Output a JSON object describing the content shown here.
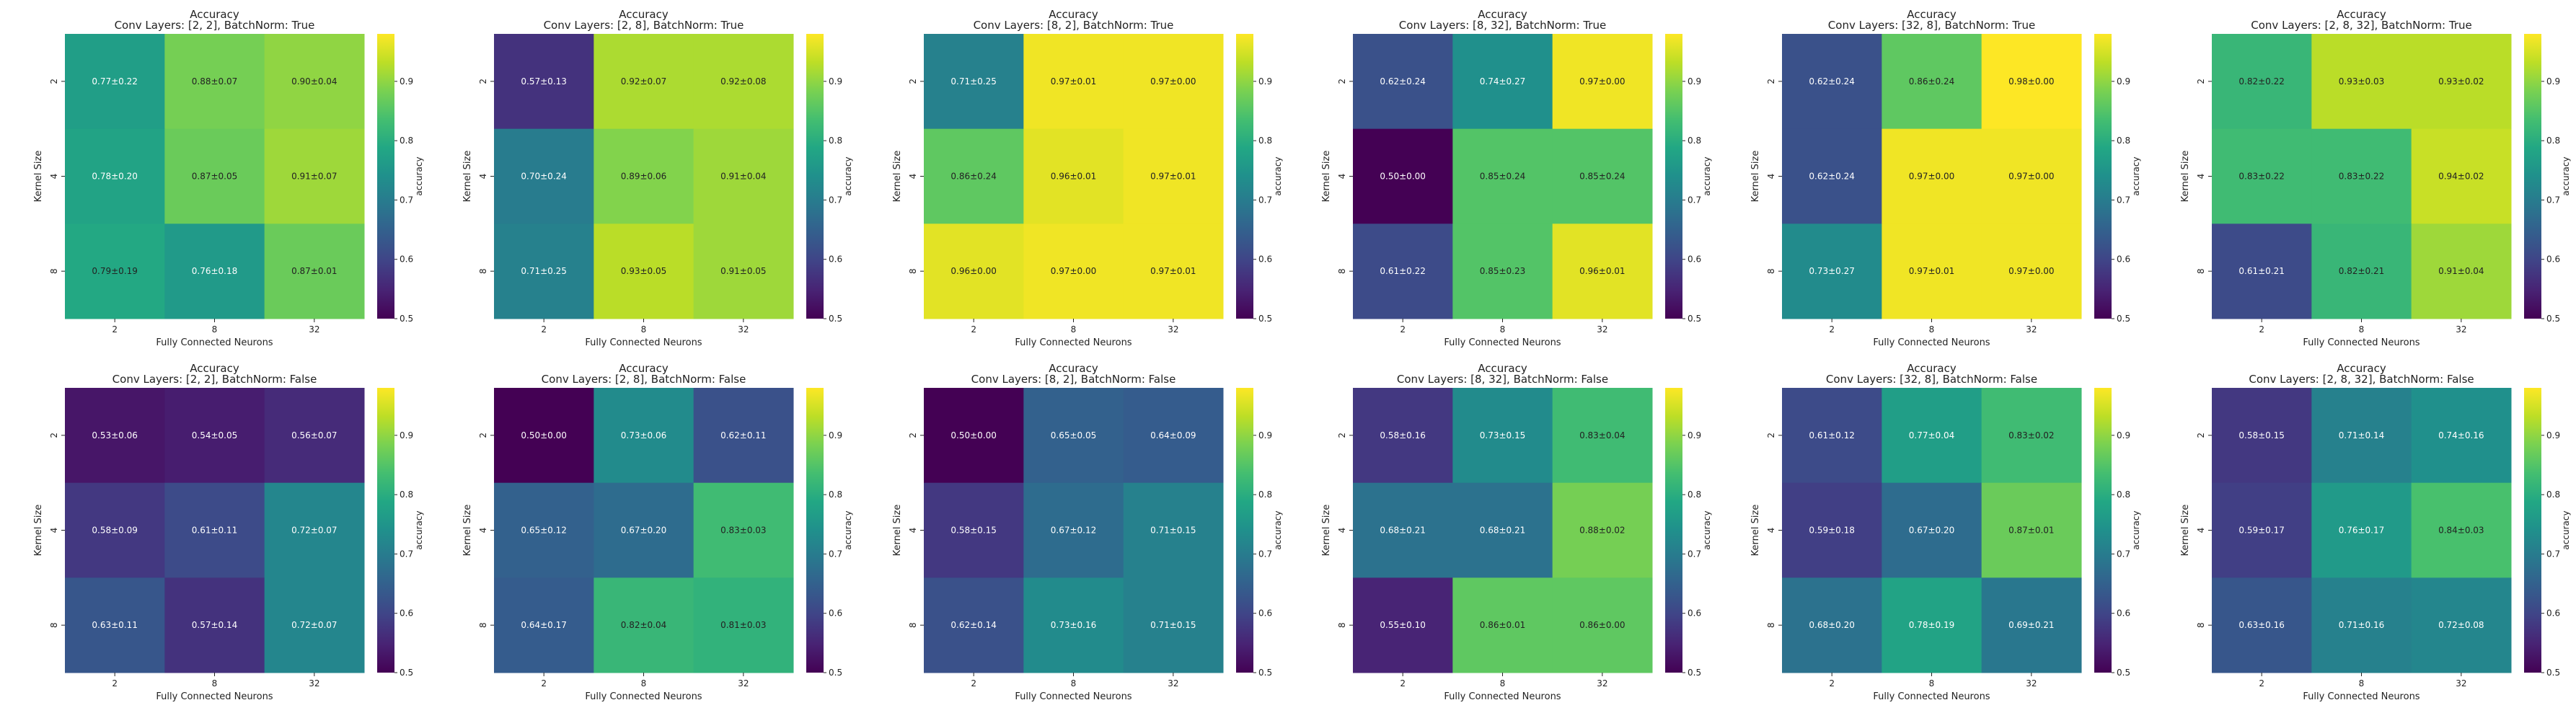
{
  "figure": {
    "colormap": "viridis",
    "vmin": 0.5,
    "vmax": 0.98,
    "colorbar_ticks": [
      "0.5",
      "0.6",
      "0.7",
      "0.8",
      "0.9"
    ],
    "colorbar_tick_values": [
      0.5,
      0.6,
      0.7,
      0.8,
      0.9
    ],
    "colorbar_label": "accuracy",
    "light_text_color": "#ffffff",
    "dark_text_color": "#222222"
  },
  "chart_data": [
    {
      "type": "heatmap",
      "title": "Accuracy",
      "subtitle": "Conv Layers: [2, 2], BatchNorm: True",
      "xlabel": "Fully Connected Neurons",
      "ylabel": "Kernel Size",
      "x_categories": [
        "2",
        "8",
        "32"
      ],
      "y_categories": [
        "2",
        "4",
        "8"
      ],
      "values": [
        [
          0.77,
          0.88,
          0.9
        ],
        [
          0.78,
          0.87,
          0.91
        ],
        [
          0.79,
          0.76,
          0.87
        ]
      ],
      "labels": [
        [
          "0.77±0.22",
          "0.88±0.07",
          "0.90±0.04"
        ],
        [
          "0.78±0.20",
          "0.87±0.05",
          "0.91±0.07"
        ],
        [
          "0.79±0.19",
          "0.76±0.18",
          "0.87±0.01"
        ]
      ]
    },
    {
      "type": "heatmap",
      "title": "Accuracy",
      "subtitle": "Conv Layers: [2, 8], BatchNorm: True",
      "xlabel": "Fully Connected Neurons",
      "ylabel": "Kernel Size",
      "x_categories": [
        "2",
        "8",
        "32"
      ],
      "y_categories": [
        "2",
        "4",
        "8"
      ],
      "values": [
        [
          0.57,
          0.92,
          0.92
        ],
        [
          0.7,
          0.89,
          0.91
        ],
        [
          0.71,
          0.93,
          0.91
        ]
      ],
      "labels": [
        [
          "0.57±0.13",
          "0.92±0.07",
          "0.92±0.08"
        ],
        [
          "0.70±0.24",
          "0.89±0.06",
          "0.91±0.04"
        ],
        [
          "0.71±0.25",
          "0.93±0.05",
          "0.91±0.05"
        ]
      ]
    },
    {
      "type": "heatmap",
      "title": "Accuracy",
      "subtitle": "Conv Layers: [8, 2], BatchNorm: True",
      "xlabel": "Fully Connected Neurons",
      "ylabel": "Kernel Size",
      "x_categories": [
        "2",
        "8",
        "32"
      ],
      "y_categories": [
        "2",
        "4",
        "8"
      ],
      "values": [
        [
          0.71,
          0.97,
          0.97
        ],
        [
          0.86,
          0.96,
          0.97
        ],
        [
          0.96,
          0.97,
          0.97
        ]
      ],
      "labels": [
        [
          "0.71±0.25",
          "0.97±0.01",
          "0.97±0.00"
        ],
        [
          "0.86±0.24",
          "0.96±0.01",
          "0.97±0.01"
        ],
        [
          "0.96±0.00",
          "0.97±0.00",
          "0.97±0.01"
        ]
      ]
    },
    {
      "type": "heatmap",
      "title": "Accuracy",
      "subtitle": "Conv Layers: [8, 32], BatchNorm: True",
      "xlabel": "Fully Connected Neurons",
      "ylabel": "Kernel Size",
      "x_categories": [
        "2",
        "8",
        "32"
      ],
      "y_categories": [
        "2",
        "4",
        "8"
      ],
      "values": [
        [
          0.62,
          0.74,
          0.97
        ],
        [
          0.5,
          0.85,
          0.85
        ],
        [
          0.61,
          0.85,
          0.96
        ]
      ],
      "labels": [
        [
          "0.62±0.24",
          "0.74±0.27",
          "0.97±0.00"
        ],
        [
          "0.50±0.00",
          "0.85±0.24",
          "0.85±0.24"
        ],
        [
          "0.61±0.22",
          "0.85±0.23",
          "0.96±0.01"
        ]
      ]
    },
    {
      "type": "heatmap",
      "title": "Accuracy",
      "subtitle": "Conv Layers: [32, 8], BatchNorm: True",
      "xlabel": "Fully Connected Neurons",
      "ylabel": "Kernel Size",
      "x_categories": [
        "2",
        "8",
        "32"
      ],
      "y_categories": [
        "2",
        "4",
        "8"
      ],
      "values": [
        [
          0.62,
          0.86,
          0.98
        ],
        [
          0.62,
          0.97,
          0.97
        ],
        [
          0.73,
          0.97,
          0.97
        ]
      ],
      "labels": [
        [
          "0.62±0.24",
          "0.86±0.24",
          "0.98±0.00"
        ],
        [
          "0.62±0.24",
          "0.97±0.00",
          "0.97±0.00"
        ],
        [
          "0.73±0.27",
          "0.97±0.01",
          "0.97±0.00"
        ]
      ]
    },
    {
      "type": "heatmap",
      "title": "Accuracy",
      "subtitle": "Conv Layers: [2, 8, 32], BatchNorm: True",
      "xlabel": "Fully Connected Neurons",
      "ylabel": "Kernel Size",
      "x_categories": [
        "2",
        "8",
        "32"
      ],
      "y_categories": [
        "2",
        "4",
        "8"
      ],
      "values": [
        [
          0.82,
          0.93,
          0.93
        ],
        [
          0.83,
          0.83,
          0.94
        ],
        [
          0.61,
          0.82,
          0.91
        ]
      ],
      "labels": [
        [
          "0.82±0.22",
          "0.93±0.03",
          "0.93±0.02"
        ],
        [
          "0.83±0.22",
          "0.83±0.22",
          "0.94±0.02"
        ],
        [
          "0.61±0.21",
          "0.82±0.21",
          "0.91±0.04"
        ]
      ]
    },
    {
      "type": "heatmap",
      "title": "Accuracy",
      "subtitle": "Conv Layers: [2, 2], BatchNorm: False",
      "xlabel": "Fully Connected Neurons",
      "ylabel": "Kernel Size",
      "x_categories": [
        "2",
        "8",
        "32"
      ],
      "y_categories": [
        "2",
        "4",
        "8"
      ],
      "values": [
        [
          0.53,
          0.54,
          0.56
        ],
        [
          0.58,
          0.61,
          0.72
        ],
        [
          0.63,
          0.57,
          0.72
        ]
      ],
      "labels": [
        [
          "0.53±0.06",
          "0.54±0.05",
          "0.56±0.07"
        ],
        [
          "0.58±0.09",
          "0.61±0.11",
          "0.72±0.07"
        ],
        [
          "0.63±0.11",
          "0.57±0.14",
          "0.72±0.07"
        ]
      ]
    },
    {
      "type": "heatmap",
      "title": "Accuracy",
      "subtitle": "Conv Layers: [2, 8], BatchNorm: False",
      "xlabel": "Fully Connected Neurons",
      "ylabel": "Kernel Size",
      "x_categories": [
        "2",
        "8",
        "32"
      ],
      "y_categories": [
        "2",
        "4",
        "8"
      ],
      "values": [
        [
          0.5,
          0.73,
          0.62
        ],
        [
          0.65,
          0.67,
          0.83
        ],
        [
          0.64,
          0.82,
          0.81
        ]
      ],
      "labels": [
        [
          "0.50±0.00",
          "0.73±0.06",
          "0.62±0.11"
        ],
        [
          "0.65±0.12",
          "0.67±0.20",
          "0.83±0.03"
        ],
        [
          "0.64±0.17",
          "0.82±0.04",
          "0.81±0.03"
        ]
      ]
    },
    {
      "type": "heatmap",
      "title": "Accuracy",
      "subtitle": "Conv Layers: [8, 2], BatchNorm: False",
      "xlabel": "Fully Connected Neurons",
      "ylabel": "Kernel Size",
      "x_categories": [
        "2",
        "8",
        "32"
      ],
      "y_categories": [
        "2",
        "4",
        "8"
      ],
      "values": [
        [
          0.5,
          0.65,
          0.64
        ],
        [
          0.58,
          0.67,
          0.71
        ],
        [
          0.62,
          0.73,
          0.71
        ]
      ],
      "labels": [
        [
          "0.50±0.00",
          "0.65±0.05",
          "0.64±0.09"
        ],
        [
          "0.58±0.15",
          "0.67±0.12",
          "0.71±0.15"
        ],
        [
          "0.62±0.14",
          "0.73±0.16",
          "0.71±0.15"
        ]
      ]
    },
    {
      "type": "heatmap",
      "title": "Accuracy",
      "subtitle": "Conv Layers: [8, 32], BatchNorm: False",
      "xlabel": "Fully Connected Neurons",
      "ylabel": "Kernel Size",
      "x_categories": [
        "2",
        "8",
        "32"
      ],
      "y_categories": [
        "2",
        "4",
        "8"
      ],
      "values": [
        [
          0.58,
          0.73,
          0.83
        ],
        [
          0.68,
          0.68,
          0.88
        ],
        [
          0.55,
          0.86,
          0.86
        ]
      ],
      "labels": [
        [
          "0.58±0.16",
          "0.73±0.15",
          "0.83±0.04"
        ],
        [
          "0.68±0.21",
          "0.68±0.21",
          "0.88±0.02"
        ],
        [
          "0.55±0.10",
          "0.86±0.01",
          "0.86±0.00"
        ]
      ]
    },
    {
      "type": "heatmap",
      "title": "Accuracy",
      "subtitle": "Conv Layers: [32, 8], BatchNorm: False",
      "xlabel": "Fully Connected Neurons",
      "ylabel": "Kernel Size",
      "x_categories": [
        "2",
        "8",
        "32"
      ],
      "y_categories": [
        "2",
        "4",
        "8"
      ],
      "values": [
        [
          0.61,
          0.77,
          0.83
        ],
        [
          0.59,
          0.67,
          0.87
        ],
        [
          0.68,
          0.78,
          0.69
        ]
      ],
      "labels": [
        [
          "0.61±0.12",
          "0.77±0.04",
          "0.83±0.02"
        ],
        [
          "0.59±0.18",
          "0.67±0.20",
          "0.87±0.01"
        ],
        [
          "0.68±0.20",
          "0.78±0.19",
          "0.69±0.21"
        ]
      ]
    },
    {
      "type": "heatmap",
      "title": "Accuracy",
      "subtitle": "Conv Layers: [2, 8, 32], BatchNorm: False",
      "xlabel": "Fully Connected Neurons",
      "ylabel": "Kernel Size",
      "x_categories": [
        "2",
        "8",
        "32"
      ],
      "y_categories": [
        "2",
        "4",
        "8"
      ],
      "values": [
        [
          0.58,
          0.71,
          0.74
        ],
        [
          0.59,
          0.76,
          0.84
        ],
        [
          0.63,
          0.71,
          0.72
        ]
      ],
      "labels": [
        [
          "0.58±0.15",
          "0.71±0.14",
          "0.74±0.16"
        ],
        [
          "0.59±0.17",
          "0.76±0.17",
          "0.84±0.03"
        ],
        [
          "0.63±0.16",
          "0.71±0.16",
          "0.72±0.08"
        ]
      ]
    }
  ]
}
